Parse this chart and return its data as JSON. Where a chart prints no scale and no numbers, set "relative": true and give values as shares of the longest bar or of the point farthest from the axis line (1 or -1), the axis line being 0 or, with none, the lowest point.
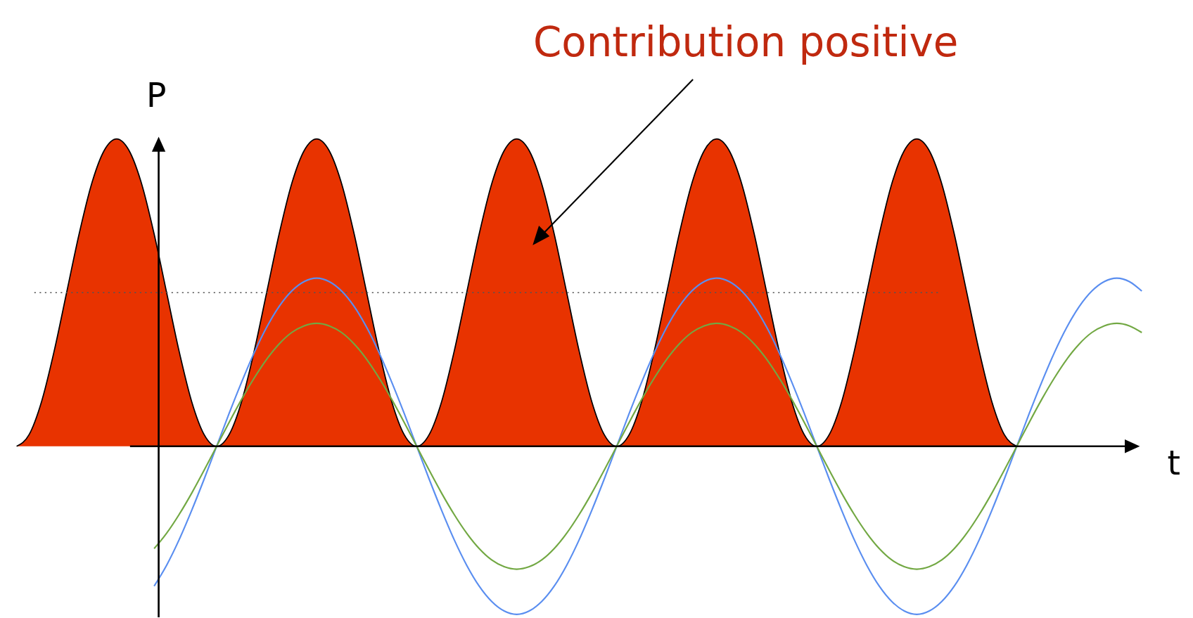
{
  "chart_data": {
    "type": "area",
    "relative": true,
    "xlabel": "t",
    "ylabel": "P",
    "annotations": [
      "Contribution positive"
    ],
    "categories": [
      null,
      null,
      null,
      null,
      null,
      null,
      null,
      null,
      null,
      null,
      null,
      null,
      null,
      null,
      null,
      null,
      null,
      null,
      null,
      null,
      null,
      null,
      null,
      null,
      null,
      null,
      null,
      null,
      null,
      null,
      null,
      null,
      null,
      null,
      null,
      null,
      null,
      null,
      null,
      null,
      null,
      null,
      null,
      null,
      null,
      null,
      null,
      null,
      null,
      null,
      null,
      null,
      null,
      null,
      null,
      null,
      null,
      null,
      null,
      null,
      null,
      null,
      null,
      null,
      null,
      null,
      null,
      null,
      null,
      null,
      null,
      null,
      null,
      null,
      null,
      null,
      null,
      null,
      null,
      null,
      null,
      null,
      null,
      null,
      null,
      null,
      null,
      null,
      null,
      null,
      null
    ],
    "series": [
      {
        "color": "#e83300",
        "values": [
          0,
          0.038,
          0.146,
          0.309,
          0.5,
          0.691,
          0.854,
          0.962,
          1,
          0.962,
          0.854,
          0.691,
          0.5,
          0.309,
          0.146,
          0.038,
          0,
          0.038,
          0.146,
          0.309,
          0.5,
          0.691,
          0.854,
          0.962,
          1,
          0.962,
          0.854,
          0.691,
          0.5,
          0.309,
          0.146,
          0.038,
          0,
          0.038,
          0.146,
          0.309,
          0.5,
          0.691,
          0.854,
          0.962,
          1,
          0.962,
          0.854,
          0.691,
          0.5,
          0.309,
          0.146,
          0.038,
          0,
          0.038,
          0.146,
          0.309,
          0.5,
          0.691,
          0.854,
          0.962,
          1,
          0.962,
          0.854,
          0.691,
          0.5,
          0.309,
          0.146,
          0.038,
          0,
          0.038,
          0.146,
          0.309,
          0.5,
          0.691,
          0.854,
          0.962,
          1,
          0.962,
          0.854,
          0.691,
          0.5,
          0.309,
          0.146,
          0.038,
          0,
          null,
          null,
          null,
          null,
          null,
          null,
          null,
          null,
          null,
          null
        ]
      },
      {
        "type": "line",
        "color": "#5a8ef0",
        "values": [
          null,
          null,
          null,
          null,
          null,
          null,
          null,
          null,
          null,
          null,
          null,
          -0.455,
          -0.387,
          -0.304,
          -0.209,
          -0.107,
          0,
          0.107,
          0.209,
          0.304,
          0.387,
          0.455,
          0.505,
          0.536,
          0.547,
          0.536,
          0.505,
          0.455,
          0.387,
          0.304,
          0.209,
          0.107,
          0,
          -0.107,
          -0.209,
          -0.304,
          -0.387,
          -0.455,
          -0.505,
          -0.536,
          -0.547,
          -0.536,
          -0.505,
          -0.455,
          -0.387,
          -0.304,
          -0.209,
          -0.107,
          0,
          0.107,
          0.209,
          0.304,
          0.387,
          0.455,
          0.505,
          0.536,
          0.547,
          0.536,
          0.505,
          0.455,
          0.387,
          0.304,
          0.209,
          0.107,
          0,
          -0.107,
          -0.209,
          -0.304,
          -0.387,
          -0.455,
          -0.505,
          -0.536,
          -0.547,
          -0.536,
          -0.505,
          -0.455,
          -0.387,
          -0.304,
          -0.209,
          -0.107,
          0,
          0.107,
          0.209,
          0.304,
          0.387,
          0.455,
          0.505,
          0.536,
          0.547,
          0.536,
          0.505
        ]
      },
      {
        "type": "line",
        "color": "#72a843",
        "values": [
          null,
          null,
          null,
          null,
          null,
          null,
          null,
          null,
          null,
          null,
          null,
          -0.333,
          -0.283,
          -0.222,
          -0.153,
          -0.078,
          0,
          0.078,
          0.153,
          0.222,
          0.283,
          0.333,
          0.37,
          0.392,
          0.4,
          0.392,
          0.37,
          0.333,
          0.283,
          0.222,
          0.153,
          0.078,
          0,
          -0.078,
          -0.153,
          -0.222,
          -0.283,
          -0.333,
          -0.37,
          -0.392,
          -0.4,
          -0.392,
          -0.37,
          -0.333,
          -0.283,
          -0.222,
          -0.153,
          -0.078,
          0,
          0.078,
          0.153,
          0.222,
          0.283,
          0.333,
          0.37,
          0.392,
          0.4,
          0.392,
          0.37,
          0.333,
          0.283,
          0.222,
          0.153,
          0.078,
          0,
          -0.078,
          -0.153,
          -0.222,
          -0.283,
          -0.333,
          -0.37,
          -0.392,
          -0.4,
          -0.392,
          -0.37,
          -0.333,
          -0.283,
          -0.222,
          -0.153,
          -0.078,
          0,
          0.078,
          0.153,
          0.222,
          0.283,
          0.333,
          0.37,
          0.392,
          0.4,
          0.392,
          0.37
        ]
      }
    ],
    "ref_lines": [
      {
        "axis": "y",
        "value": 0.5,
        "color": "#555555",
        "line_style": "dotted"
      }
    ]
  }
}
